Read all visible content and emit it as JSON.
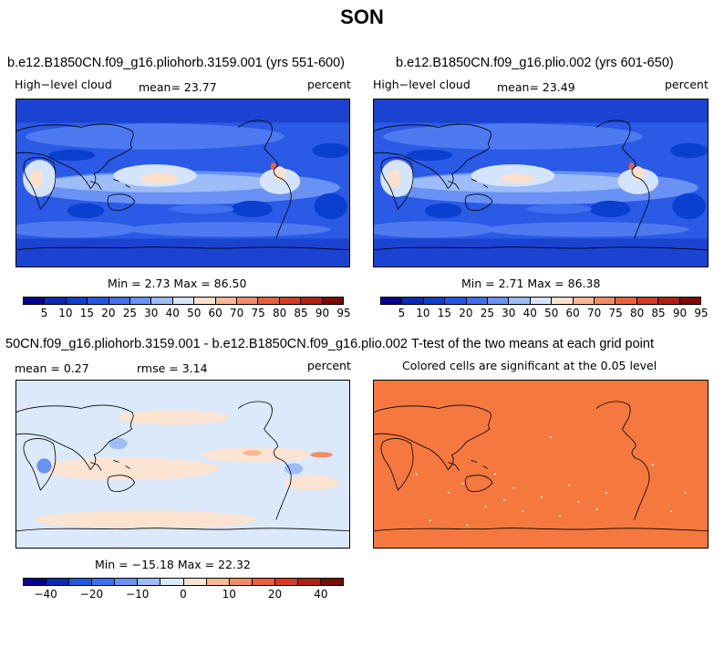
{
  "figure": {
    "title": "SON"
  },
  "panels": [
    {
      "title": "b.e12.B1850CN.f09_g16.pliohorb.3159.001 (yrs 551-600)",
      "left": "High−level cloud",
      "center": "mean=   23.77",
      "right": "percent",
      "minmax": "Min =    2.73 Max =   86.50",
      "colorbar": {
        "colors": [
          "#08008f",
          "#0a2ab8",
          "#0b3fd0",
          "#2257e6",
          "#4070f0",
          "#6a92f5",
          "#9dbcf8",
          "#d4e4fb",
          "#fbe0cc",
          "#f7b894",
          "#f08d66",
          "#e9603f",
          "#d53a24",
          "#b21f12",
          "#7f0b05"
        ],
        "labels": [
          "5",
          "10",
          "15",
          "20",
          "25",
          "30",
          "40",
          "50",
          "60",
          "70",
          "75",
          "80",
          "85",
          "90",
          "95"
        ]
      }
    },
    {
      "title": "b.e12.B1850CN.f09_g16.plio.002 (yrs 601-650)",
      "left": "High−level cloud",
      "center": "mean=   23.49",
      "right": "percent",
      "minmax": "Min =    2.71 Max =   86.38",
      "colorbar": {
        "colors": [
          "#08008f",
          "#0a2ab8",
          "#0b3fd0",
          "#2257e6",
          "#4070f0",
          "#6a92f5",
          "#9dbcf8",
          "#d4e4fb",
          "#fbe0cc",
          "#f7b894",
          "#f08d66",
          "#e9603f",
          "#d53a24",
          "#b21f12",
          "#7f0b05"
        ],
        "labels": [
          "5",
          "10",
          "15",
          "20",
          "25",
          "30",
          "40",
          "50",
          "60",
          "70",
          "75",
          "80",
          "85",
          "90",
          "95"
        ]
      }
    },
    {
      "title": "50CN.f09_g16.pliohorb.3159.001 - b.e12.B1850CN.f09_g16.plio.002",
      "left": "mean =    0.27",
      "center": "rmse =    3.14",
      "right": "percent",
      "minmax": "Min = −15.18 Max =   22.32",
      "colorbar": {
        "colors": [
          "#08008f",
          "#0a2ab8",
          "#2257e6",
          "#4070f0",
          "#6a92f5",
          "#9dbcf8",
          "#dbe9fb",
          "#fbe3d2",
          "#f7b894",
          "#f08d66",
          "#e9603f",
          "#d53a24",
          "#b21f12",
          "#7f0b05"
        ],
        "labels": [
          "−40",
          "−20",
          "−10",
          "0",
          "10",
          "20",
          "40"
        ]
      }
    },
    {
      "title": "T-test of the two means at each grid point",
      "subtitle": "Colored cells are significant at the 0.05 level",
      "fill": "#f5793e"
    }
  ]
}
